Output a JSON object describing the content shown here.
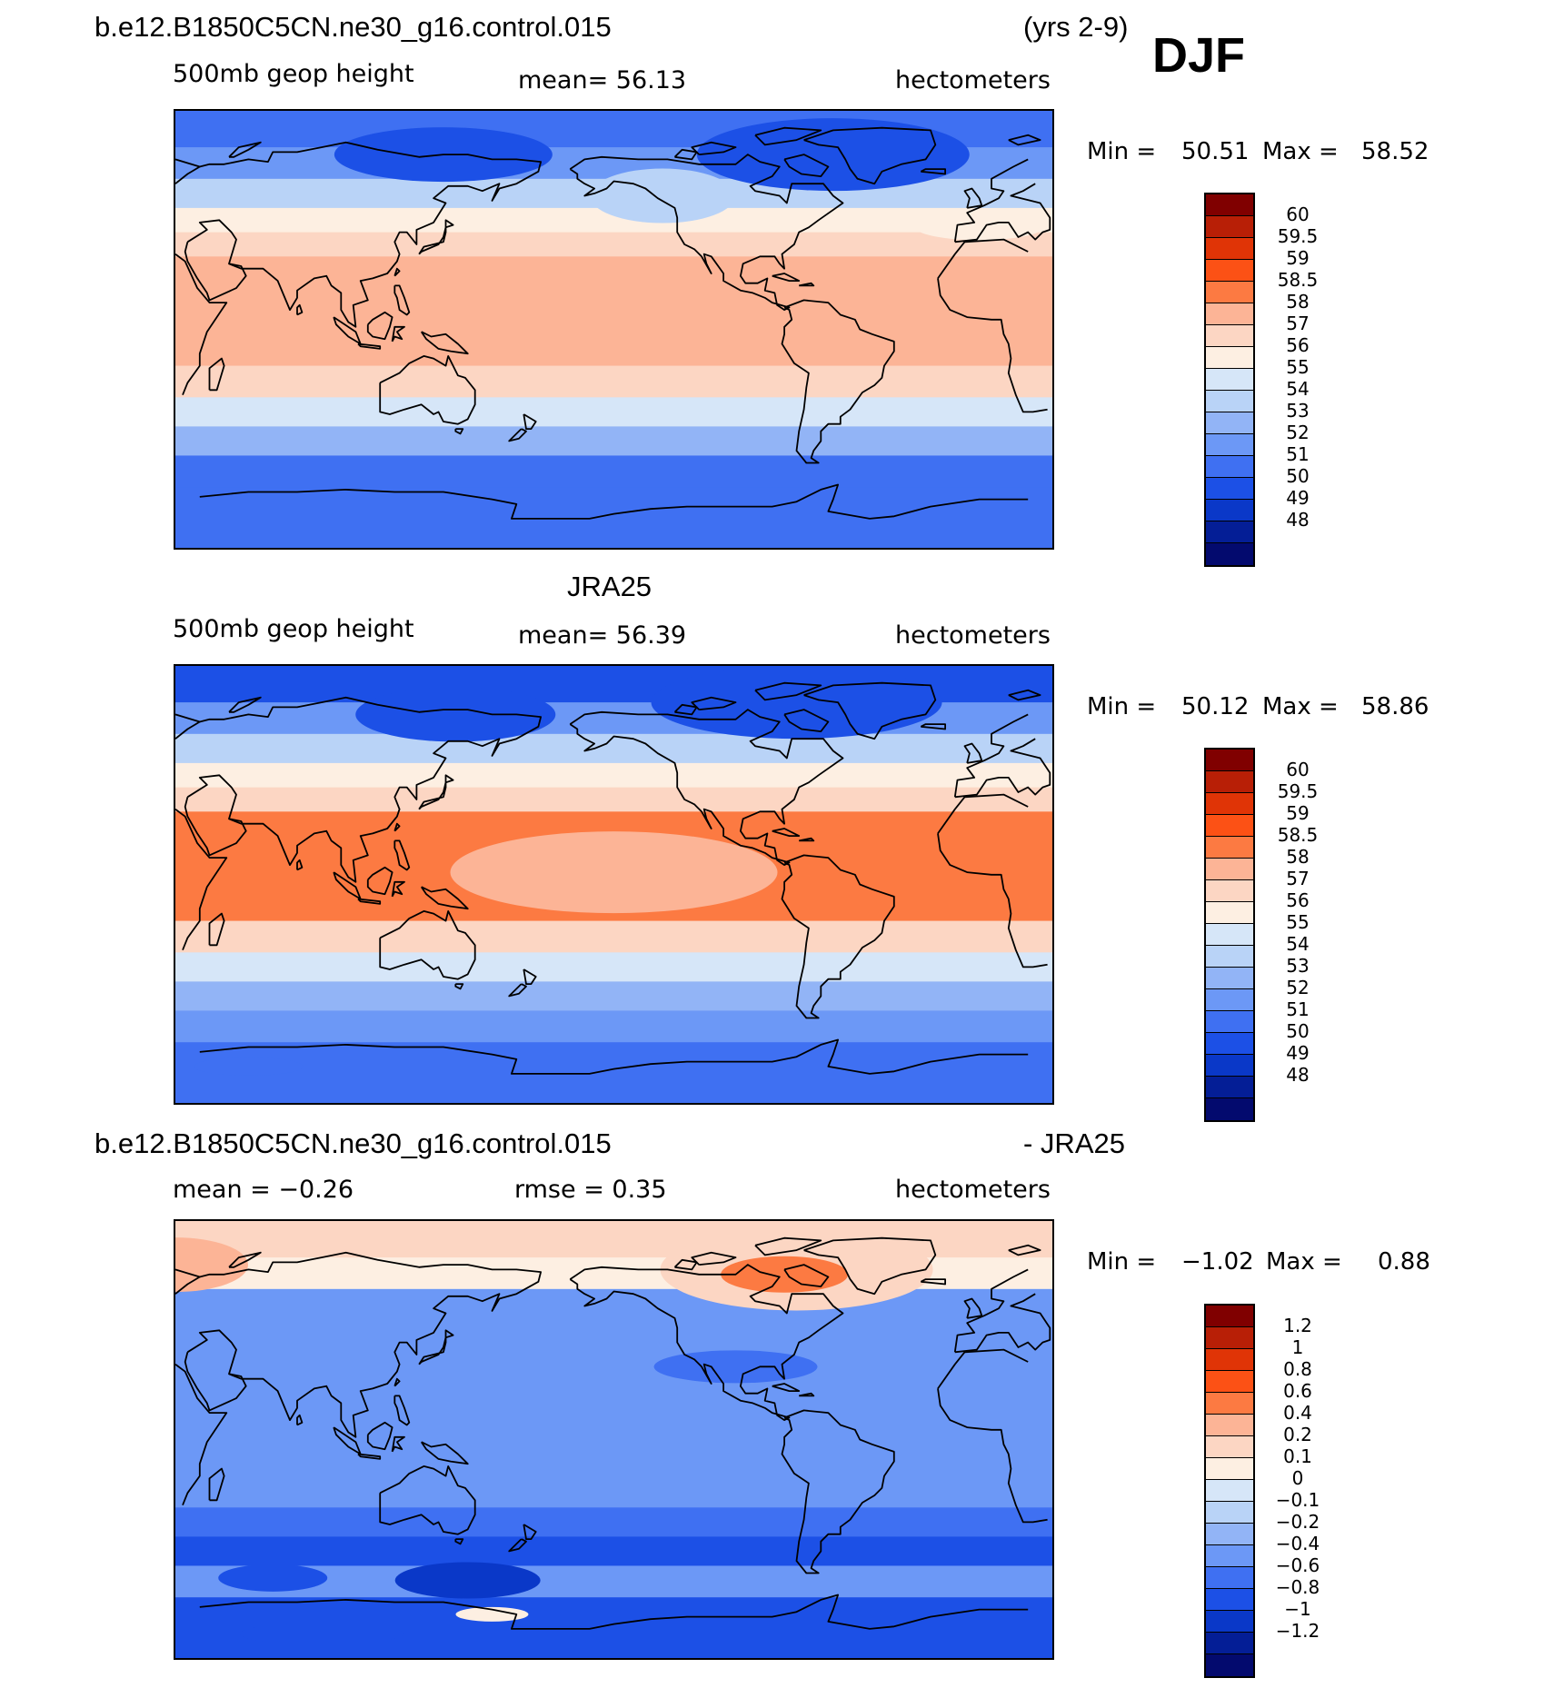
{
  "header": {
    "case_name": "b.e12.B1850C5CN.ne30_g16.control.015",
    "years": "(yrs 2-9)",
    "season": "DJF"
  },
  "panels": [
    {
      "title": "",
      "left_label": "500mb geop height",
      "center_label": "mean=   56.13",
      "right_label": "hectometers",
      "min_label": "Min =",
      "min_value": "50.51",
      "max_label": "Max =",
      "max_value": "58.52"
    },
    {
      "title": "JRA25",
      "left_label": "500mb geop height",
      "center_label": "mean=   56.39",
      "right_label": "hectometers",
      "min_label": "Min =",
      "min_value": "50.12",
      "max_label": "Max =",
      "max_value": "58.86"
    },
    {
      "title_left": "b.e12.B1850C5CN.ne30_g16.control.015",
      "title_right": "- JRA25",
      "left_label": "mean =   −0.26",
      "center_label": "rmse =    0.35",
      "right_label": "hectometers",
      "min_label": "Min =",
      "min_value": "−1.02",
      "max_label": "Max =",
      "max_value": "0.88"
    }
  ],
  "colorbar_colors": [
    "#800000",
    "#b81f06",
    "#e03406",
    "#fc5115",
    "#fc7a42",
    "#fcb496",
    "#fcd6c3",
    "#fdefe2",
    "#d6e6f8",
    "#b9d3f7",
    "#92b4f6",
    "#6c98f6",
    "#3f70f2",
    "#1c50e6",
    "#0a38c8",
    "#041e96",
    "#030a6e"
  ],
  "colorbar_ticks_abs": [
    "60",
    "59.5",
    "59",
    "58.5",
    "58",
    "57",
    "56",
    "55",
    "54",
    "53",
    "52",
    "51",
    "50",
    "49",
    "48"
  ],
  "colorbar_ticks_diff": [
    "1.2",
    "1",
    "0.8",
    "0.6",
    "0.4",
    "0.2",
    "0.1",
    "0",
    "−0.1",
    "−0.2",
    "−0.4",
    "−0.6",
    "−0.8",
    "−1",
    "−1.2"
  ],
  "chart_data": [
    {
      "type": "heatmap",
      "title": "b.e12.B1850C5CN.ne30_g16.control.015 (yrs 2-9) DJF",
      "variable": "500mb geop height",
      "units": "hectometers",
      "mean": 56.13,
      "min": 50.51,
      "max": 58.52,
      "contour_levels": [
        48,
        49,
        50,
        51,
        52,
        53,
        54,
        55,
        56,
        57,
        58,
        58.5,
        59,
        59.5,
        60
      ],
      "band_mean_values": [
        51.2,
        52.5,
        54.3,
        56.2,
        57.6,
        58.2,
        58.3,
        58.2,
        57.5,
        55.6,
        53.4,
        51.8,
        51.5
      ]
    },
    {
      "type": "heatmap",
      "title": "JRA25",
      "variable": "500mb geop height",
      "units": "hectometers",
      "mean": 56.39,
      "min": 50.12,
      "max": 58.86,
      "contour_levels": [
        48,
        49,
        50,
        51,
        52,
        53,
        54,
        55,
        56,
        57,
        58,
        58.5,
        59,
        59.5,
        60
      ],
      "band_mean_values": [
        50.8,
        52.3,
        54.3,
        56.2,
        57.7,
        58.6,
        58.7,
        58.6,
        57.8,
        55.8,
        53.6,
        52.0,
        51.7
      ]
    },
    {
      "type": "heatmap",
      "title": "b.e12.B1850C5CN.ne30_g16.control.015 - JRA25",
      "units": "hectometers",
      "mean": -0.26,
      "rmse": 0.35,
      "min": -1.02,
      "max": 0.88,
      "contour_levels": [
        -1.2,
        -1,
        -0.8,
        -0.6,
        -0.4,
        -0.2,
        -0.1,
        0,
        0.1,
        0.2,
        0.4,
        0.6,
        0.8,
        1,
        1.2
      ],
      "band_mean_values": [
        0.2,
        0.1,
        -0.3,
        -0.4,
        -0.3,
        -0.3,
        -0.3,
        -0.3,
        -0.3,
        -0.5,
        -0.7,
        -0.3,
        -0.7
      ]
    }
  ]
}
